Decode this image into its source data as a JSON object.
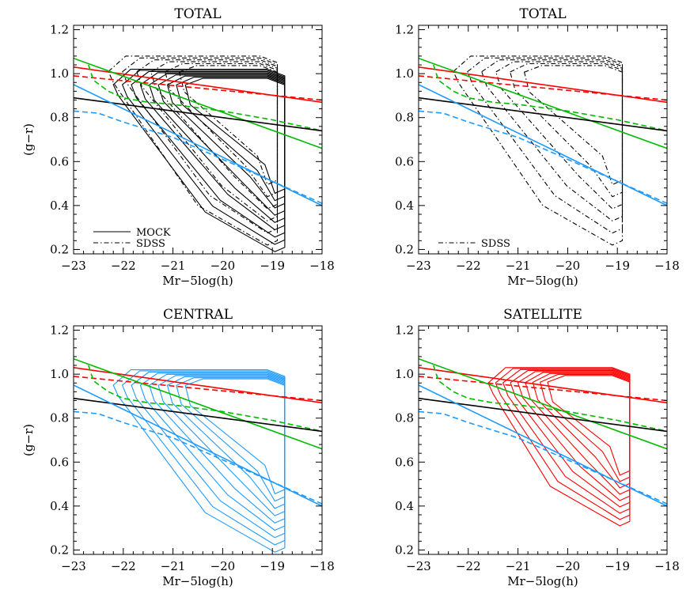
{
  "chart_data": [
    {
      "type": "line",
      "title": "TOTAL",
      "xlabel": "Mr−5log(h)",
      "ylabel": "(g−r)",
      "xlim": [
        -23,
        -18
      ],
      "ylim": [
        0.18,
        1.22
      ],
      "xticks": [
        -23,
        -22,
        -21,
        -20,
        -19,
        -18
      ],
      "yticks": [
        0.2,
        0.4,
        0.6,
        0.8,
        1.0,
        1.2
      ],
      "xtick_labels": [
        "−23",
        "−22",
        "−21",
        "−20",
        "−19",
        "−18"
      ],
      "ytick_labels": [
        "0.2",
        "0.4",
        "0.6",
        "0.8",
        "1.0",
        "1.2"
      ],
      "grid": false,
      "legend": {
        "position": "bottom-left",
        "entries": [
          {
            "label": "MOCK",
            "style": "solid"
          },
          {
            "label": "SDSS",
            "style": "dash-dot"
          }
        ]
      },
      "contour_sets": [
        {
          "label": "MOCK",
          "style": "solid",
          "color": "#000000",
          "levels": 9,
          "extent": {
            "x": [
              -22.2,
              -18.75
            ],
            "y": [
              0.19,
              1.02
            ]
          }
        },
        {
          "label": "SDSS",
          "style": "dash-dot",
          "color": "#000000",
          "levels": 6,
          "extent": {
            "x": [
              -22.3,
              -18.9
            ],
            "y": [
              0.22,
              1.08
            ]
          }
        }
      ],
      "series": [
        {
          "color": "#ff0000",
          "style": "solid",
          "x": [
            -23,
            -18
          ],
          "y": [
            1.03,
            0.87
          ]
        },
        {
          "color": "#ff0000",
          "style": "dashed",
          "x": [
            -23,
            -18
          ],
          "y": [
            0.99,
            0.88
          ]
        },
        {
          "color": "#00bb00",
          "style": "solid",
          "x": [
            -23,
            -18
          ],
          "y": [
            1.07,
            0.66
          ]
        },
        {
          "color": "#00bb00",
          "style": "dashed",
          "x": [
            -22.7,
            -22.6,
            -22.3,
            -22.0,
            -21.5,
            -21.0,
            -20.0,
            -19.0,
            -18.0
          ],
          "y": [
            1.04,
            0.97,
            0.92,
            0.89,
            0.87,
            0.86,
            0.83,
            0.79,
            0.74
          ]
        },
        {
          "color": "#000000",
          "style": "solid",
          "x": [
            -23,
            -18
          ],
          "y": [
            0.89,
            0.74
          ]
        },
        {
          "color": "#1e9bff",
          "style": "solid",
          "x": [
            -23,
            -18
          ],
          "y": [
            0.95,
            0.4
          ]
        },
        {
          "color": "#1e9bff",
          "style": "dashed",
          "x": [
            -23.0,
            -22.5,
            -22.0,
            -21.0,
            -20.0,
            -19.0,
            -18.0
          ],
          "y": [
            0.83,
            0.82,
            0.78,
            0.71,
            0.61,
            0.51,
            0.41
          ]
        }
      ]
    },
    {
      "type": "line",
      "title": "TOTAL",
      "xlabel": "Mr−5log(h)",
      "ylabel": "",
      "xlim": [
        -23,
        -18
      ],
      "ylim": [
        0.18,
        1.22
      ],
      "xticks": [
        -23,
        -22,
        -21,
        -20,
        -19,
        -18
      ],
      "yticks": [
        0.2,
        0.4,
        0.6,
        0.8,
        1.0,
        1.2
      ],
      "xtick_labels": [
        "−23",
        "−22",
        "−21",
        "−20",
        "−19",
        "−18"
      ],
      "ytick_labels": [
        "0.2",
        "0.4",
        "0.6",
        "0.8",
        "1.0",
        "1.2"
      ],
      "grid": false,
      "legend": {
        "position": "bottom-left",
        "entries": [
          {
            "label": "SDSS",
            "style": "dash-dot"
          }
        ]
      },
      "contour_sets": [
        {
          "label": "SDSS",
          "style": "dash-dot",
          "color": "#000000",
          "levels": 6,
          "extent": {
            "x": [
              -22.3,
              -18.9
            ],
            "y": [
              0.22,
              1.08
            ]
          }
        }
      ],
      "series": [
        {
          "color": "#ff0000",
          "style": "solid",
          "x": [
            -23,
            -18
          ],
          "y": [
            1.03,
            0.87
          ]
        },
        {
          "color": "#ff0000",
          "style": "dashed",
          "x": [
            -23,
            -18
          ],
          "y": [
            0.99,
            0.88
          ]
        },
        {
          "color": "#00bb00",
          "style": "solid",
          "x": [
            -23,
            -18
          ],
          "y": [
            1.07,
            0.66
          ]
        },
        {
          "color": "#00bb00",
          "style": "dashed",
          "x": [
            -22.7,
            -22.6,
            -22.3,
            -22.0,
            -21.5,
            -21.0,
            -20.0,
            -19.0,
            -18.0
          ],
          "y": [
            1.04,
            0.97,
            0.92,
            0.89,
            0.87,
            0.86,
            0.83,
            0.79,
            0.74
          ]
        },
        {
          "color": "#000000",
          "style": "solid",
          "x": [
            -23,
            -18
          ],
          "y": [
            0.89,
            0.74
          ]
        },
        {
          "color": "#1e9bff",
          "style": "solid",
          "x": [
            -23,
            -18
          ],
          "y": [
            0.95,
            0.4
          ]
        },
        {
          "color": "#1e9bff",
          "style": "dashed",
          "x": [
            -23.0,
            -22.5,
            -22.0,
            -21.0,
            -20.0,
            -19.0,
            -18.0
          ],
          "y": [
            0.83,
            0.82,
            0.78,
            0.71,
            0.61,
            0.51,
            0.41
          ]
        }
      ]
    },
    {
      "type": "line",
      "title": "CENTRAL",
      "xlabel": "Mr−5log(h)",
      "ylabel": "(g−r)",
      "xlim": [
        -23,
        -18
      ],
      "ylim": [
        0.18,
        1.22
      ],
      "xticks": [
        -23,
        -22,
        -21,
        -20,
        -19,
        -18
      ],
      "yticks": [
        0.2,
        0.4,
        0.6,
        0.8,
        1.0,
        1.2
      ],
      "xtick_labels": [
        "−23",
        "−22",
        "−21",
        "−20",
        "−19",
        "−18"
      ],
      "ytick_labels": [
        "0.2",
        "0.4",
        "0.6",
        "0.8",
        "1.0",
        "1.2"
      ],
      "grid": false,
      "legend": null,
      "contour_sets": [
        {
          "label": "",
          "style": "solid",
          "color": "#1e9bff",
          "levels": 9,
          "extent": {
            "x": [
              -22.2,
              -18.75
            ],
            "y": [
              0.19,
              1.02
            ]
          }
        }
      ],
      "series": [
        {
          "color": "#ff0000",
          "style": "solid",
          "x": [
            -23,
            -18
          ],
          "y": [
            1.03,
            0.87
          ]
        },
        {
          "color": "#ff0000",
          "style": "dashed",
          "x": [
            -23,
            -18
          ],
          "y": [
            0.99,
            0.88
          ]
        },
        {
          "color": "#00bb00",
          "style": "solid",
          "x": [
            -23,
            -18
          ],
          "y": [
            1.07,
            0.66
          ]
        },
        {
          "color": "#00bb00",
          "style": "dashed",
          "x": [
            -22.7,
            -22.6,
            -22.3,
            -22.0,
            -21.5,
            -21.0,
            -20.0,
            -19.0,
            -18.0
          ],
          "y": [
            1.04,
            0.97,
            0.92,
            0.89,
            0.87,
            0.86,
            0.83,
            0.79,
            0.74
          ]
        },
        {
          "color": "#000000",
          "style": "solid",
          "x": [
            -23,
            -18
          ],
          "y": [
            0.89,
            0.74
          ]
        },
        {
          "color": "#1e9bff",
          "style": "solid",
          "x": [
            -23,
            -18
          ],
          "y": [
            0.95,
            0.4
          ]
        },
        {
          "color": "#1e9bff",
          "style": "dashed",
          "x": [
            -23.0,
            -22.5,
            -22.0,
            -21.0,
            -20.0,
            -19.0,
            -18.0
          ],
          "y": [
            0.83,
            0.82,
            0.78,
            0.71,
            0.61,
            0.51,
            0.41
          ]
        }
      ]
    },
    {
      "type": "line",
      "title": "SATELLITE",
      "xlabel": "Mr−5log(h)",
      "ylabel": "",
      "xlim": [
        -23,
        -18
      ],
      "ylim": [
        0.18,
        1.22
      ],
      "xticks": [
        -23,
        -22,
        -21,
        -20,
        -19,
        -18
      ],
      "yticks": [
        0.2,
        0.4,
        0.6,
        0.8,
        1.0,
        1.2
      ],
      "xtick_labels": [
        "−23",
        "−22",
        "−21",
        "−20",
        "−19",
        "−18"
      ],
      "ytick_labels": [
        "0.2",
        "0.4",
        "0.6",
        "0.8",
        "1.0",
        "1.2"
      ],
      "grid": false,
      "legend": null,
      "contour_sets": [
        {
          "label": "",
          "style": "solid",
          "color": "#ff0000",
          "levels": 9,
          "extent": {
            "x": [
              -21.6,
              -18.75
            ],
            "y": [
              0.31,
              1.03
            ]
          }
        }
      ],
      "series": [
        {
          "color": "#ff0000",
          "style": "solid",
          "x": [
            -23,
            -18
          ],
          "y": [
            1.03,
            0.87
          ]
        },
        {
          "color": "#ff0000",
          "style": "dashed",
          "x": [
            -23,
            -18
          ],
          "y": [
            0.99,
            0.88
          ]
        },
        {
          "color": "#00bb00",
          "style": "solid",
          "x": [
            -23,
            -18
          ],
          "y": [
            1.07,
            0.66
          ]
        },
        {
          "color": "#00bb00",
          "style": "dashed",
          "x": [
            -22.7,
            -22.6,
            -22.3,
            -22.0,
            -21.5,
            -21.0,
            -20.0,
            -19.0,
            -18.0
          ],
          "y": [
            1.04,
            0.97,
            0.92,
            0.89,
            0.87,
            0.86,
            0.83,
            0.79,
            0.74
          ]
        },
        {
          "color": "#000000",
          "style": "solid",
          "x": [
            -23,
            -18
          ],
          "y": [
            0.89,
            0.74
          ]
        },
        {
          "color": "#1e9bff",
          "style": "solid",
          "x": [
            -23,
            -18
          ],
          "y": [
            0.95,
            0.4
          ]
        },
        {
          "color": "#1e9bff",
          "style": "dashed",
          "x": [
            -23.0,
            -22.5,
            -22.0,
            -21.0,
            -20.0,
            -19.0,
            -18.0
          ],
          "y": [
            0.83,
            0.82,
            0.78,
            0.71,
            0.61,
            0.51,
            0.41
          ]
        }
      ]
    }
  ]
}
